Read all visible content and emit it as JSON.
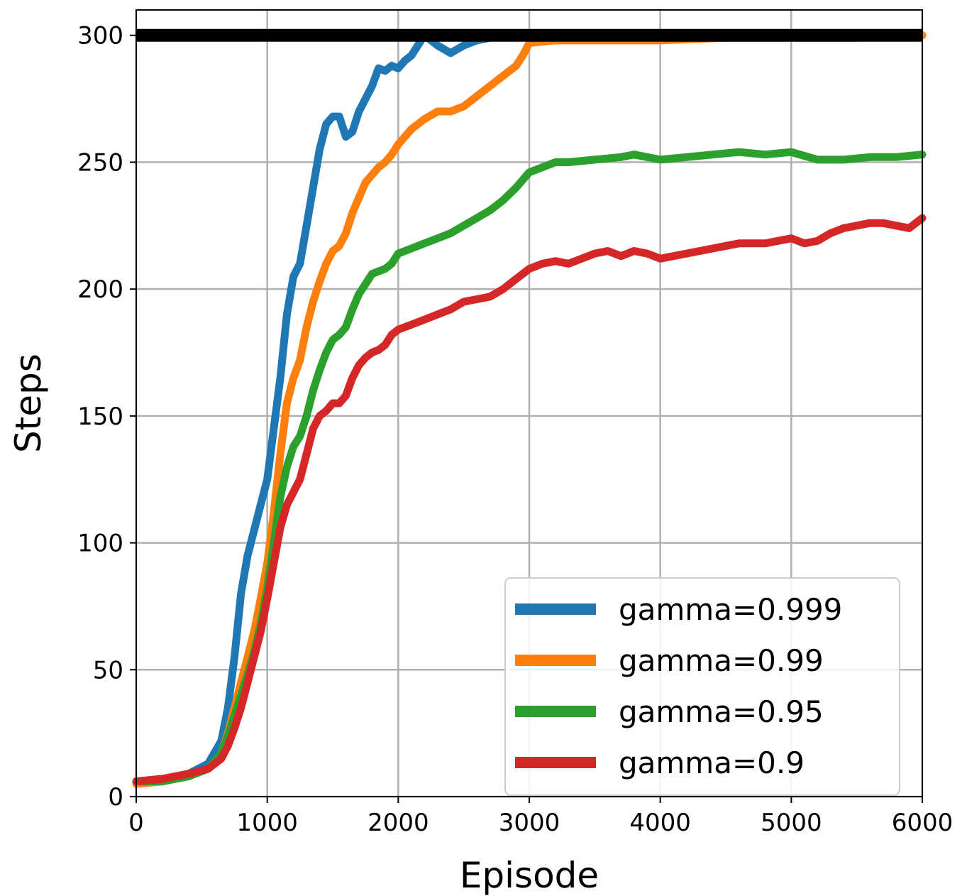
{
  "chart_data": {
    "type": "line",
    "xlabel": "Episode",
    "ylabel": "Steps",
    "xlim": [
      0,
      6000
    ],
    "ylim": [
      0,
      310
    ],
    "x_ticks": [
      0,
      1000,
      2000,
      3000,
      4000,
      5000,
      6000
    ],
    "y_ticks": [
      0,
      50,
      100,
      150,
      200,
      250,
      300
    ],
    "grid": true,
    "legend_position": "lower-right",
    "reference_line": {
      "y": 300,
      "color": "#000000"
    },
    "series": [
      {
        "name": "gamma=0.999",
        "color": "#1f77b4",
        "x": [
          0,
          200,
          400,
          550,
          650,
          700,
          750,
          800,
          850,
          900,
          950,
          1000,
          1050,
          1100,
          1150,
          1200,
          1250,
          1300,
          1350,
          1400,
          1450,
          1500,
          1550,
          1600,
          1650,
          1700,
          1750,
          1800,
          1850,
          1900,
          1950,
          2000,
          2050,
          2100,
          2150,
          2200,
          2300,
          2400,
          2500,
          2600,
          2700,
          2800,
          3000,
          3500,
          4000,
          4500,
          5000,
          5500,
          6000
        ],
        "y": [
          6,
          7,
          9,
          13,
          22,
          35,
          55,
          80,
          95,
          105,
          115,
          125,
          145,
          165,
          190,
          205,
          210,
          225,
          240,
          255,
          265,
          268,
          268,
          260,
          262,
          270,
          275,
          280,
          287,
          286,
          288,
          287,
          290,
          292,
          296,
          300,
          296,
          293,
          296,
          298,
          299,
          300,
          300,
          300,
          300,
          300,
          300,
          300,
          300
        ]
      },
      {
        "name": "gamma=0.99",
        "color": "#ff7f0e",
        "x": [
          0,
          200,
          400,
          550,
          650,
          700,
          750,
          800,
          850,
          900,
          950,
          1000,
          1050,
          1100,
          1150,
          1200,
          1250,
          1300,
          1350,
          1400,
          1450,
          1500,
          1550,
          1600,
          1650,
          1700,
          1750,
          1800,
          1850,
          1900,
          1950,
          2000,
          2100,
          2200,
          2300,
          2400,
          2500,
          2600,
          2700,
          2800,
          2900,
          2950,
          3000,
          3200,
          3500,
          4000,
          4500,
          5000,
          5500,
          6000
        ],
        "y": [
          5,
          6,
          8,
          11,
          17,
          25,
          35,
          45,
          55,
          65,
          78,
          92,
          112,
          135,
          155,
          165,
          172,
          185,
          195,
          203,
          210,
          215,
          217,
          222,
          230,
          236,
          242,
          245,
          248,
          250,
          253,
          257,
          263,
          267,
          270,
          270,
          272,
          276,
          280,
          284,
          288,
          292,
          297,
          298,
          298,
          298,
          299,
          299,
          299,
          300
        ]
      },
      {
        "name": "gamma=0.95",
        "color": "#2ca02c",
        "x": [
          0,
          200,
          400,
          550,
          650,
          700,
          750,
          800,
          850,
          900,
          950,
          1000,
          1050,
          1100,
          1150,
          1200,
          1250,
          1300,
          1350,
          1400,
          1450,
          1500,
          1550,
          1600,
          1650,
          1700,
          1750,
          1800,
          1850,
          1900,
          1950,
          2000,
          2100,
          2200,
          2300,
          2400,
          2500,
          2600,
          2700,
          2800,
          2900,
          3000,
          3100,
          3200,
          3300,
          3500,
          3700,
          3800,
          3900,
          4000,
          4200,
          4400,
          4600,
          4800,
          5000,
          5200,
          5400,
          5600,
          5800,
          6000
        ],
        "y": [
          6,
          6,
          8,
          11,
          17,
          24,
          32,
          40,
          48,
          57,
          68,
          82,
          100,
          118,
          130,
          138,
          142,
          150,
          160,
          168,
          175,
          180,
          182,
          185,
          192,
          198,
          202,
          206,
          207,
          208,
          210,
          214,
          216,
          218,
          220,
          222,
          225,
          228,
          231,
          235,
          240,
          246,
          248,
          250,
          250,
          251,
          252,
          253,
          252,
          251,
          252,
          253,
          254,
          253,
          254,
          251,
          251,
          252,
          252,
          253
        ]
      },
      {
        "name": "gamma=0.9",
        "color": "#d62728",
        "x": [
          0,
          200,
          400,
          550,
          650,
          700,
          750,
          800,
          850,
          900,
          950,
          1000,
          1050,
          1100,
          1150,
          1200,
          1250,
          1300,
          1350,
          1400,
          1450,
          1500,
          1550,
          1600,
          1650,
          1700,
          1750,
          1800,
          1850,
          1900,
          1950,
          2000,
          2100,
          2200,
          2300,
          2400,
          2500,
          2600,
          2700,
          2800,
          2900,
          3000,
          3100,
          3200,
          3300,
          3400,
          3500,
          3600,
          3700,
          3800,
          3900,
          4000,
          4200,
          4400,
          4600,
          4800,
          5000,
          5100,
          5200,
          5300,
          5400,
          5500,
          5600,
          5700,
          5800,
          5900,
          6000
        ],
        "y": [
          6,
          7,
          9,
          11,
          15,
          20,
          27,
          35,
          45,
          55,
          65,
          78,
          92,
          106,
          115,
          120,
          125,
          135,
          145,
          150,
          152,
          155,
          155,
          158,
          165,
          170,
          173,
          175,
          176,
          178,
          182,
          184,
          186,
          188,
          190,
          192,
          195,
          196,
          197,
          200,
          204,
          208,
          210,
          211,
          210,
          212,
          214,
          215,
          213,
          215,
          214,
          212,
          214,
          216,
          218,
          218,
          220,
          218,
          219,
          222,
          224,
          225,
          226,
          226,
          225,
          224,
          228
        ]
      }
    ]
  }
}
